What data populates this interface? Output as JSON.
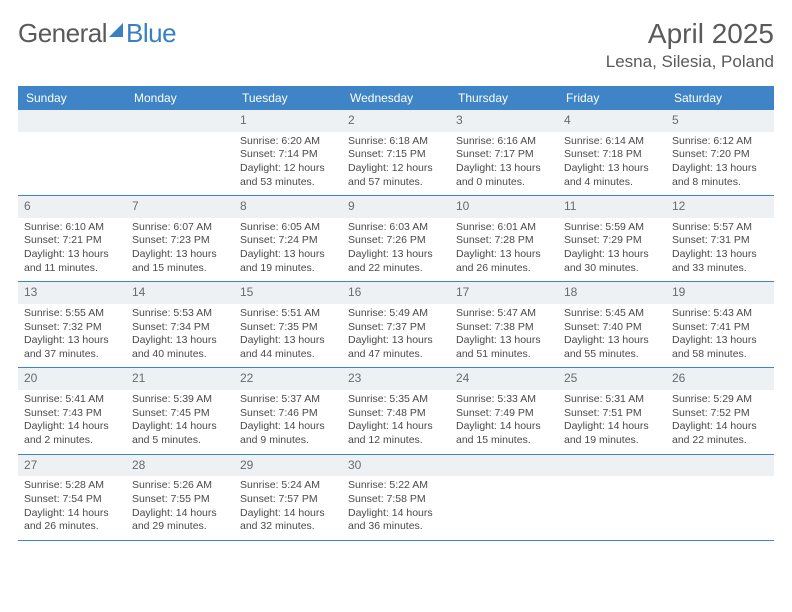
{
  "brand": {
    "part1": "General",
    "part2": "Blue"
  },
  "title": "April 2025",
  "location": "Lesna, Silesia, Poland",
  "colors": {
    "header_bg": "#3e84c6",
    "header_text": "#ffffff",
    "num_bg": "#eef1f3",
    "text": "#4a4a4a",
    "brand_gray": "#5a5a5a",
    "brand_blue": "#3a7fc4"
  },
  "daynames": [
    "Sunday",
    "Monday",
    "Tuesday",
    "Wednesday",
    "Thursday",
    "Friday",
    "Saturday"
  ],
  "weeks": [
    [
      {
        "n": "",
        "e": true
      },
      {
        "n": "",
        "e": true
      },
      {
        "n": "1",
        "sr": "Sunrise: 6:20 AM",
        "ss": "Sunset: 7:14 PM",
        "d1": "Daylight: 12 hours",
        "d2": "and 53 minutes."
      },
      {
        "n": "2",
        "sr": "Sunrise: 6:18 AM",
        "ss": "Sunset: 7:15 PM",
        "d1": "Daylight: 12 hours",
        "d2": "and 57 minutes."
      },
      {
        "n": "3",
        "sr": "Sunrise: 6:16 AM",
        "ss": "Sunset: 7:17 PM",
        "d1": "Daylight: 13 hours",
        "d2": "and 0 minutes."
      },
      {
        "n": "4",
        "sr": "Sunrise: 6:14 AM",
        "ss": "Sunset: 7:18 PM",
        "d1": "Daylight: 13 hours",
        "d2": "and 4 minutes."
      },
      {
        "n": "5",
        "sr": "Sunrise: 6:12 AM",
        "ss": "Sunset: 7:20 PM",
        "d1": "Daylight: 13 hours",
        "d2": "and 8 minutes."
      }
    ],
    [
      {
        "n": "6",
        "sr": "Sunrise: 6:10 AM",
        "ss": "Sunset: 7:21 PM",
        "d1": "Daylight: 13 hours",
        "d2": "and 11 minutes."
      },
      {
        "n": "7",
        "sr": "Sunrise: 6:07 AM",
        "ss": "Sunset: 7:23 PM",
        "d1": "Daylight: 13 hours",
        "d2": "and 15 minutes."
      },
      {
        "n": "8",
        "sr": "Sunrise: 6:05 AM",
        "ss": "Sunset: 7:24 PM",
        "d1": "Daylight: 13 hours",
        "d2": "and 19 minutes."
      },
      {
        "n": "9",
        "sr": "Sunrise: 6:03 AM",
        "ss": "Sunset: 7:26 PM",
        "d1": "Daylight: 13 hours",
        "d2": "and 22 minutes."
      },
      {
        "n": "10",
        "sr": "Sunrise: 6:01 AM",
        "ss": "Sunset: 7:28 PM",
        "d1": "Daylight: 13 hours",
        "d2": "and 26 minutes."
      },
      {
        "n": "11",
        "sr": "Sunrise: 5:59 AM",
        "ss": "Sunset: 7:29 PM",
        "d1": "Daylight: 13 hours",
        "d2": "and 30 minutes."
      },
      {
        "n": "12",
        "sr": "Sunrise: 5:57 AM",
        "ss": "Sunset: 7:31 PM",
        "d1": "Daylight: 13 hours",
        "d2": "and 33 minutes."
      }
    ],
    [
      {
        "n": "13",
        "sr": "Sunrise: 5:55 AM",
        "ss": "Sunset: 7:32 PM",
        "d1": "Daylight: 13 hours",
        "d2": "and 37 minutes."
      },
      {
        "n": "14",
        "sr": "Sunrise: 5:53 AM",
        "ss": "Sunset: 7:34 PM",
        "d1": "Daylight: 13 hours",
        "d2": "and 40 minutes."
      },
      {
        "n": "15",
        "sr": "Sunrise: 5:51 AM",
        "ss": "Sunset: 7:35 PM",
        "d1": "Daylight: 13 hours",
        "d2": "and 44 minutes."
      },
      {
        "n": "16",
        "sr": "Sunrise: 5:49 AM",
        "ss": "Sunset: 7:37 PM",
        "d1": "Daylight: 13 hours",
        "d2": "and 47 minutes."
      },
      {
        "n": "17",
        "sr": "Sunrise: 5:47 AM",
        "ss": "Sunset: 7:38 PM",
        "d1": "Daylight: 13 hours",
        "d2": "and 51 minutes."
      },
      {
        "n": "18",
        "sr": "Sunrise: 5:45 AM",
        "ss": "Sunset: 7:40 PM",
        "d1": "Daylight: 13 hours",
        "d2": "and 55 minutes."
      },
      {
        "n": "19",
        "sr": "Sunrise: 5:43 AM",
        "ss": "Sunset: 7:41 PM",
        "d1": "Daylight: 13 hours",
        "d2": "and 58 minutes."
      }
    ],
    [
      {
        "n": "20",
        "sr": "Sunrise: 5:41 AM",
        "ss": "Sunset: 7:43 PM",
        "d1": "Daylight: 14 hours",
        "d2": "and 2 minutes."
      },
      {
        "n": "21",
        "sr": "Sunrise: 5:39 AM",
        "ss": "Sunset: 7:45 PM",
        "d1": "Daylight: 14 hours",
        "d2": "and 5 minutes."
      },
      {
        "n": "22",
        "sr": "Sunrise: 5:37 AM",
        "ss": "Sunset: 7:46 PM",
        "d1": "Daylight: 14 hours",
        "d2": "and 9 minutes."
      },
      {
        "n": "23",
        "sr": "Sunrise: 5:35 AM",
        "ss": "Sunset: 7:48 PM",
        "d1": "Daylight: 14 hours",
        "d2": "and 12 minutes."
      },
      {
        "n": "24",
        "sr": "Sunrise: 5:33 AM",
        "ss": "Sunset: 7:49 PM",
        "d1": "Daylight: 14 hours",
        "d2": "and 15 minutes."
      },
      {
        "n": "25",
        "sr": "Sunrise: 5:31 AM",
        "ss": "Sunset: 7:51 PM",
        "d1": "Daylight: 14 hours",
        "d2": "and 19 minutes."
      },
      {
        "n": "26",
        "sr": "Sunrise: 5:29 AM",
        "ss": "Sunset: 7:52 PM",
        "d1": "Daylight: 14 hours",
        "d2": "and 22 minutes."
      }
    ],
    [
      {
        "n": "27",
        "sr": "Sunrise: 5:28 AM",
        "ss": "Sunset: 7:54 PM",
        "d1": "Daylight: 14 hours",
        "d2": "and 26 minutes."
      },
      {
        "n": "28",
        "sr": "Sunrise: 5:26 AM",
        "ss": "Sunset: 7:55 PM",
        "d1": "Daylight: 14 hours",
        "d2": "and 29 minutes."
      },
      {
        "n": "29",
        "sr": "Sunrise: 5:24 AM",
        "ss": "Sunset: 7:57 PM",
        "d1": "Daylight: 14 hours",
        "d2": "and 32 minutes."
      },
      {
        "n": "30",
        "sr": "Sunrise: 5:22 AM",
        "ss": "Sunset: 7:58 PM",
        "d1": "Daylight: 14 hours",
        "d2": "and 36 minutes."
      },
      {
        "n": "",
        "e": true
      },
      {
        "n": "",
        "e": true
      },
      {
        "n": "",
        "e": true
      }
    ]
  ]
}
